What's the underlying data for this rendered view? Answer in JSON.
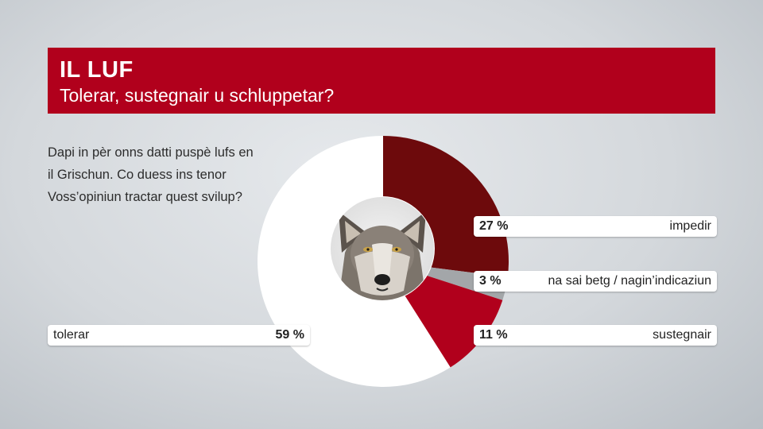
{
  "header": {
    "title": "IL LUF",
    "subtitle": "Tolerar, sustegnair u schluppetar?"
  },
  "question": "Dapi in pèr onns datti puspè lufs en il Grischun. Co duess ins tenor Voss’opiniun tractar quest svilup?",
  "center_image": "wolf-head-photo",
  "chart_data": {
    "type": "pie",
    "title": "",
    "slices": [
      {
        "label": "impedir",
        "value": 27,
        "pct_text": "27 %",
        "color": "#6d0a0c"
      },
      {
        "label": "na sai betg / nagin’indicaziun",
        "value": 3,
        "pct_text": "3 %",
        "color": "#a3a6a9"
      },
      {
        "label": "sustegnair",
        "value": 11,
        "pct_text": "11 %",
        "color": "#b1001c"
      },
      {
        "label": "tolerar",
        "value": 59,
        "pct_text": "59 %",
        "color": "#ffffff"
      }
    ]
  }
}
